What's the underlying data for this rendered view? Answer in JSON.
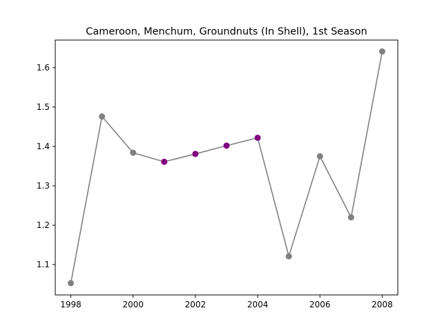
{
  "chart_data": {
    "type": "line",
    "title": "Cameroon, Menchum, Groundnuts (In Shell), 1st Season",
    "xlabel": "",
    "ylabel": "",
    "xlim": [
      1997.5,
      2008.5
    ],
    "ylim": [
      1.023,
      1.67
    ],
    "x_ticks": [
      1998,
      2000,
      2002,
      2004,
      2006,
      2008
    ],
    "y_ticks": [
      1.1,
      1.2,
      1.3,
      1.4,
      1.5,
      1.6
    ],
    "x_tick_labels": [
      "1998",
      "2000",
      "2002",
      "2004",
      "2006",
      "2008"
    ],
    "y_tick_labels": [
      "1.1",
      "1.2",
      "1.3",
      "1.4",
      "1.5",
      "1.6"
    ],
    "grid": false,
    "line_color": "#808080",
    "series": [
      {
        "x": [
          1998,
          1999,
          2000,
          2001,
          2002,
          2003,
          2004,
          2005,
          2006,
          2007,
          2008
        ],
        "values": [
          1.053,
          1.476,
          1.384,
          1.361,
          1.381,
          1.402,
          1.422,
          1.121,
          1.375,
          1.22,
          1.641
        ],
        "point_colors": [
          "#808080",
          "#808080",
          "#808080",
          "#800080",
          "#800080",
          "#800080",
          "#800080",
          "#808080",
          "#808080",
          "#808080",
          "#808080"
        ]
      }
    ]
  }
}
